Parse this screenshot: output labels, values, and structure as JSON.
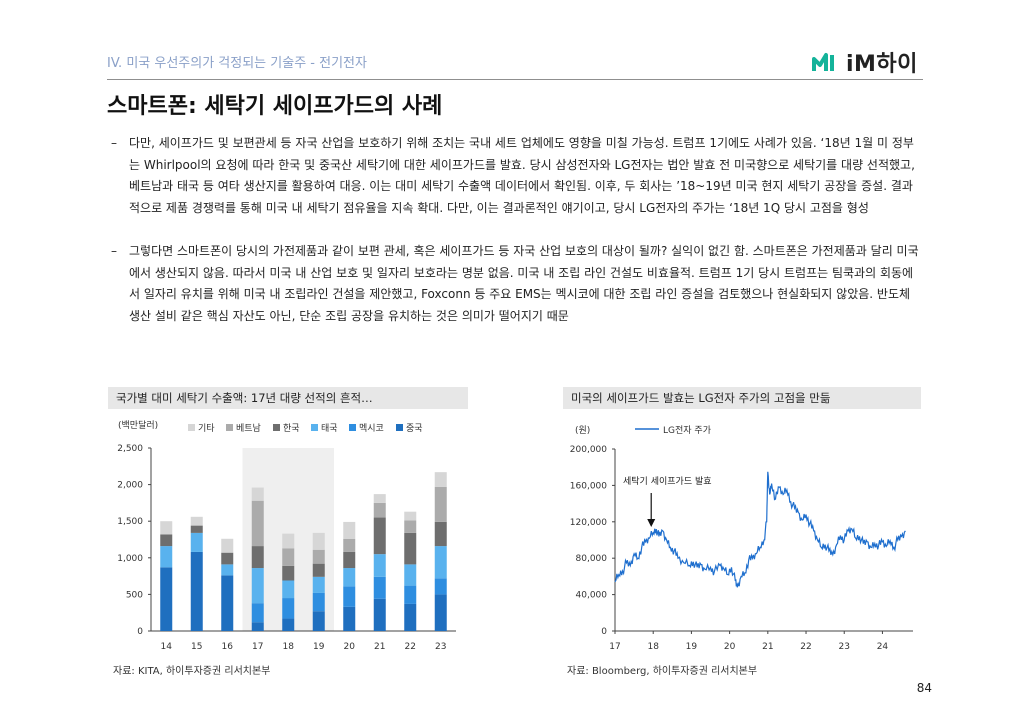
{
  "header": {
    "section": "IV. 미국 우선주의가 걱정되는 기술주 - 전기전자",
    "logo_text": "iM하이",
    "title": "스마트폰: 세탁기 세이프가드의 사례"
  },
  "bullets": [
    {
      "dash": "–",
      "text": "다만, 세이프가드 및 보편관세 등 자국 산업을 보호하기 위해 조치는 국내 세트 업체에도 영향을 미칠 가능성. 트럼프 1기에도 사례가 있음. ‘18년 1월 미 정부는 Whirlpool의 요청에 따라 한국 및 중국산 세탁기에 대한 세이프가드를 발효. 당시 삼성전자와 LG전자는 법안 발효 전 미국향으로 세탁기를 대량 선적했고, 베트남과 태국 등 여타 생산지를 활용하여 대응. 이는 대미 세탁기 수출액 데이터에서 확인됨. 이후, 두 회사는 ’18~19년 미국 현지 세탁기 공장을 증설. 결과적으로 제품 경쟁력를 통해 미국 내 세탁기 점유율을 지속 확대. 다만, 이는 결과론적인 얘기이고, 당시 LG전자의 주가는 ‘18년 1Q 당시 고점을 형성"
    },
    {
      "dash": "–",
      "text": "그렇다면 스마트폰이 당시의 가전제품과 같이 보편 관세, 혹은 세이프가드 등 자국 산업 보호의 대상이 될까? 실익이 없긴 함. 스마트폰은 가전제품과 달리 미국에서 생산되지 않음. 따라서 미국 내 산업 보호 및 일자리 보호라는 명분 없음. 미국 내 조립 라인 건설도 비효율적. 트럼프 1기 당시 트럼프는 팀쿡과의 회동에서 일자리 유치를 위해 미국 내 조립라인 건설을 제안했고, Foxconn 등 주요 EMS는 멕시코에 대한 조립 라인 증설을 검토했으나 현실화되지 않았음. 반도체 생산 설비 같은 핵심 자산도 아닌, 단순 조립 공장을 유치하는 것은 의미가 떨어지기 때문"
    }
  ],
  "left_panel": {
    "title": "국가별 대미 세탁기 수출액: 17년 대량 선적의 흔적…",
    "unit": "(백만달러)",
    "source": "자료: KITA, 하이투자증권 리서치본부"
  },
  "right_panel": {
    "title": "미국의 세이프가드 발효는 LG전자 주가의 고점을 만듦",
    "unit": "(원)",
    "source": "자료: Bloomberg, 하이투자증권 리서치본부",
    "annotation": "세탁기 세이프가드 발효"
  },
  "page_number": "84",
  "chart_data": [
    {
      "type": "bar",
      "stacked": true,
      "title": "국가별 대미 세탁기 수출액: 17년 대량 선적의 흔적…",
      "ylabel": "(백만달러)",
      "ylim": [
        0,
        2500
      ],
      "yticks": [
        0,
        500,
        1000,
        1500,
        2000,
        2500
      ],
      "ytick_labels": [
        "0",
        "500",
        "1,000",
        "1,500",
        "2,000",
        "2,500"
      ],
      "categories": [
        "14",
        "15",
        "16",
        "17",
        "18",
        "19",
        "20",
        "21",
        "22",
        "23"
      ],
      "highlight": [
        "17",
        "18",
        "19"
      ],
      "legend": [
        "기타",
        "베트남",
        "한국",
        "태국",
        "멕시코",
        "중국"
      ],
      "series": [
        {
          "name": "중국",
          "color": "#1f6fbf",
          "values": [
            870,
            1080,
            760,
            120,
            170,
            270,
            330,
            440,
            370,
            500
          ]
        },
        {
          "name": "멕시코",
          "color": "#2e8ee0",
          "values": [
            0,
            0,
            0,
            260,
            280,
            250,
            280,
            300,
            250,
            220
          ]
        },
        {
          "name": "태국",
          "color": "#59b2ee",
          "values": [
            290,
            260,
            150,
            480,
            240,
            220,
            250,
            310,
            290,
            440
          ]
        },
        {
          "name": "한국",
          "color": "#6e6e6e",
          "values": [
            160,
            100,
            160,
            300,
            200,
            180,
            220,
            500,
            430,
            330
          ]
        },
        {
          "name": "베트남",
          "color": "#ababab",
          "values": [
            0,
            0,
            0,
            620,
            240,
            190,
            180,
            200,
            170,
            480
          ]
        },
        {
          "name": "기타",
          "color": "#d6d6d6",
          "values": [
            180,
            120,
            190,
            180,
            200,
            230,
            230,
            120,
            120,
            200
          ]
        }
      ]
    },
    {
      "type": "line",
      "title": "미국의 세이프가드 발효는 LG전자 주가의 고점을 만듦",
      "ylabel": "(원)",
      "legend": [
        "LG전자 주가"
      ],
      "color": "#1f6fce",
      "ylim": [
        0,
        200000
      ],
      "yticks": [
        0,
        40000,
        80000,
        120000,
        160000,
        200000
      ],
      "ytick_labels": [
        "0",
        "40,000",
        "80,000",
        "120,000",
        "160,000",
        "200,000"
      ],
      "xlim": [
        17,
        24.8
      ],
      "xticks": [
        17,
        18,
        19,
        20,
        21,
        22,
        23,
        24
      ],
      "xtick_labels": [
        "17",
        "18",
        "19",
        "20",
        "21",
        "22",
        "23",
        "24"
      ],
      "annotation_x": 18.0,
      "points": [
        [
          17.0,
          54000
        ],
        [
          17.1,
          62000
        ],
        [
          17.2,
          66000
        ],
        [
          17.3,
          75000
        ],
        [
          17.4,
          72000
        ],
        [
          17.5,
          85000
        ],
        [
          17.6,
          80000
        ],
        [
          17.7,
          92000
        ],
        [
          17.8,
          98000
        ],
        [
          17.9,
          102000
        ],
        [
          18.0,
          108000
        ],
        [
          18.08,
          112000
        ],
        [
          18.15,
          104000
        ],
        [
          18.25,
          110000
        ],
        [
          18.35,
          100000
        ],
        [
          18.45,
          92000
        ],
        [
          18.55,
          88000
        ],
        [
          18.65,
          80000
        ],
        [
          18.8,
          75000
        ],
        [
          18.95,
          72000
        ],
        [
          19.05,
          76000
        ],
        [
          19.15,
          70000
        ],
        [
          19.25,
          73000
        ],
        [
          19.35,
          68000
        ],
        [
          19.5,
          70000
        ],
        [
          19.6,
          65000
        ],
        [
          19.75,
          72000
        ],
        [
          19.85,
          68000
        ],
        [
          19.95,
          62000
        ],
        [
          20.05,
          70000
        ],
        [
          20.15,
          55000
        ],
        [
          20.2,
          48000
        ],
        [
          20.3,
          60000
        ],
        [
          20.4,
          64000
        ],
        [
          20.5,
          78000
        ],
        [
          20.6,
          80000
        ],
        [
          20.7,
          85000
        ],
        [
          20.8,
          92000
        ],
        [
          20.9,
          100000
        ],
        [
          20.97,
          120000
        ],
        [
          21.0,
          175000
        ],
        [
          21.05,
          150000
        ],
        [
          21.1,
          162000
        ],
        [
          21.2,
          145000
        ],
        [
          21.3,
          158000
        ],
        [
          21.4,
          150000
        ],
        [
          21.5,
          155000
        ],
        [
          21.6,
          142000
        ],
        [
          21.7,
          135000
        ],
        [
          21.8,
          130000
        ],
        [
          21.9,
          122000
        ],
        [
          22.0,
          128000
        ],
        [
          22.1,
          118000
        ],
        [
          22.2,
          110000
        ],
        [
          22.3,
          100000
        ],
        [
          22.4,
          92000
        ],
        [
          22.5,
          95000
        ],
        [
          22.6,
          88000
        ],
        [
          22.7,
          84000
        ],
        [
          22.8,
          95000
        ],
        [
          22.9,
          105000
        ],
        [
          23.0,
          100000
        ],
        [
          23.1,
          110000
        ],
        [
          23.2,
          112000
        ],
        [
          23.3,
          102000
        ],
        [
          23.4,
          104000
        ],
        [
          23.5,
          96000
        ],
        [
          23.6,
          98000
        ],
        [
          23.7,
          92000
        ],
        [
          23.8,
          96000
        ],
        [
          23.9,
          94000
        ],
        [
          24.0,
          98000
        ],
        [
          24.1,
          93000
        ],
        [
          24.2,
          99000
        ],
        [
          24.3,
          92000
        ],
        [
          24.4,
          100000
        ],
        [
          24.5,
          104000
        ],
        [
          24.6,
          110000
        ]
      ]
    }
  ]
}
